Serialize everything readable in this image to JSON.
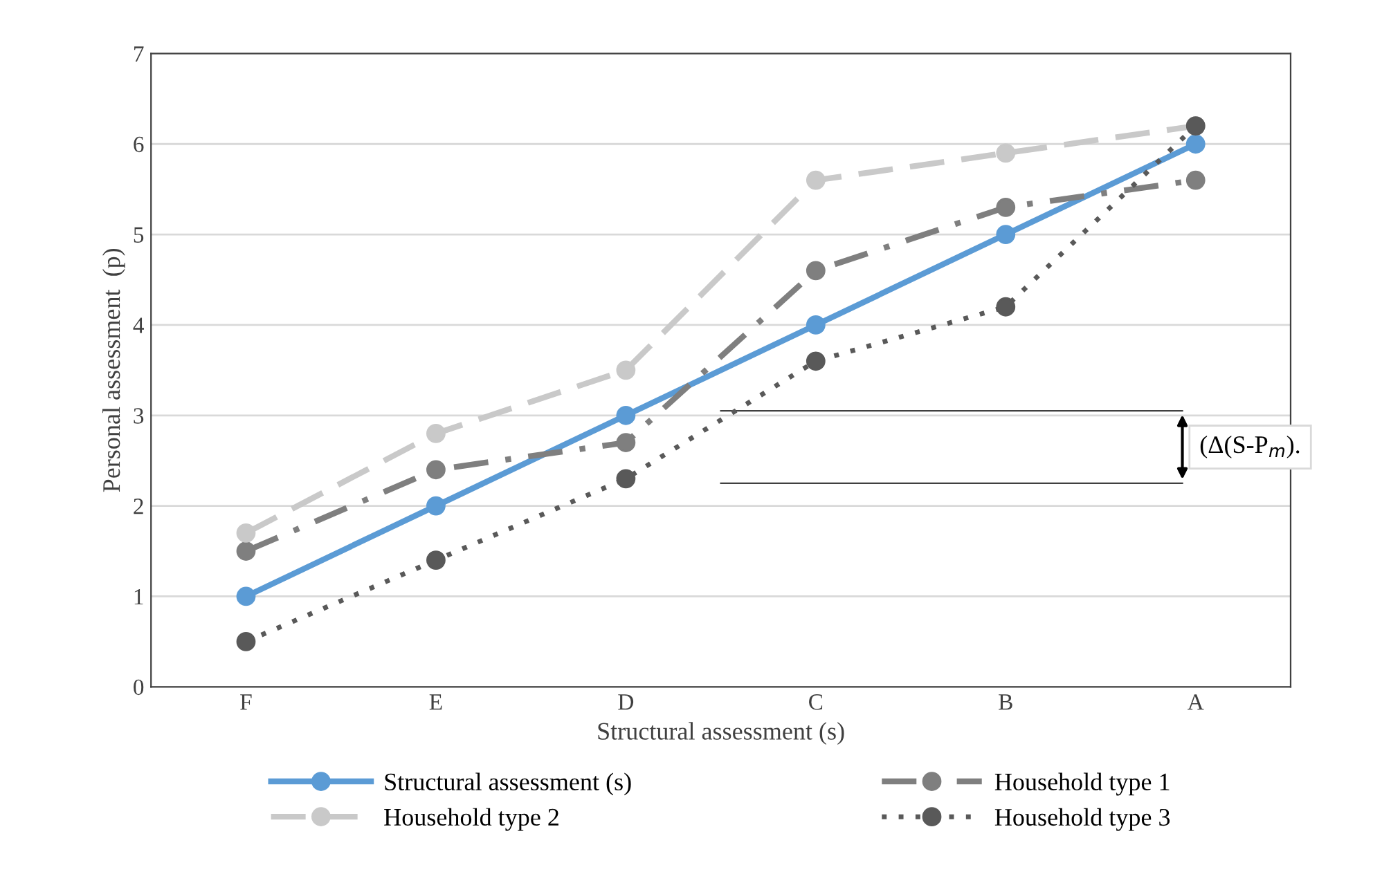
{
  "chart_data": {
    "type": "line",
    "xlabel": "Structural assessment (s)",
    "ylabel": "Personal assessment  (p)",
    "categories": [
      "F",
      "E",
      "D",
      "C",
      "B",
      "A"
    ],
    "series": [
      {
        "name": "Structural assessment (s)",
        "color": "#5b9bd5",
        "line_style": "solid",
        "values": [
          1,
          2,
          3,
          4,
          5,
          6
        ]
      },
      {
        "name": "Household type 1",
        "color": "#7f7f7f",
        "line_style": "dashdot",
        "values": [
          1.5,
          2.4,
          2.7,
          4.6,
          5.3,
          5.6
        ]
      },
      {
        "name": "Household type 2",
        "color": "#c9c9c9",
        "line_style": "dashed",
        "values": [
          1.7,
          2.8,
          3.5,
          5.6,
          5.9,
          6.2
        ]
      },
      {
        "name": "Household type 3",
        "color": "#595959",
        "line_style": "dotted",
        "values": [
          0.5,
          1.4,
          2.3,
          3.6,
          4.2,
          6.2
        ]
      }
    ],
    "ylim": [
      0,
      7
    ],
    "yticks": [
      0,
      1,
      2,
      3,
      4,
      5,
      6,
      7
    ],
    "grid": "y",
    "legend": "bottom",
    "marker": "circle",
    "annotations": [
      "(Δ(S-P$_{m}$)."
    ]
  }
}
